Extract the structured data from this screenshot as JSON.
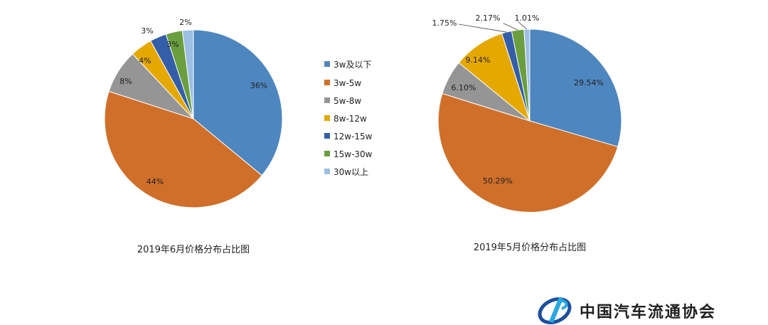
{
  "colors": {
    "series": [
      "#4e86bf",
      "#d06f2a",
      "#959595",
      "#e5a800",
      "#345fa8",
      "#6a9e3e",
      "#9cbfe3"
    ],
    "logo_blue": "#1c4fa0",
    "logo_cyan": "#29a8e0"
  },
  "chart_data": [
    {
      "type": "pie",
      "title": "2019年6月价格分布占比图",
      "categories": [
        "3w及以下",
        "3w-5w",
        "5w-8w",
        "8w-12w",
        "12w-15w",
        "15w-30w",
        "30w以上"
      ],
      "values": [
        36,
        44,
        8,
        4,
        3,
        3,
        2
      ],
      "labels": [
        "36%",
        "44%",
        "8%",
        "4%",
        "3%",
        "3%",
        "2%"
      ]
    },
    {
      "type": "pie",
      "title": "2019年5月价格分布占比图",
      "categories": [
        "3w及以下",
        "3w-5w",
        "5w-8w",
        "8w-12w",
        "12w-15w",
        "15w-30w",
        "30w以上"
      ],
      "values": [
        29.54,
        50.29,
        6.1,
        9.14,
        1.75,
        2.17,
        1.01
      ],
      "labels": [
        "29.54%",
        "50.29%",
        "6.10%",
        "9.14%",
        "1.75%",
        "2.17%",
        "1.01%"
      ]
    }
  ],
  "legend": {
    "position": "center",
    "items": [
      "3w及以下",
      "3w-5w",
      "5w-8w",
      "8w-12w",
      "12w-15w",
      "15w-30w",
      "30w以上"
    ]
  },
  "logo": {
    "text": "中国汽车流通协会",
    "icon": "cada-logo-icon"
  }
}
